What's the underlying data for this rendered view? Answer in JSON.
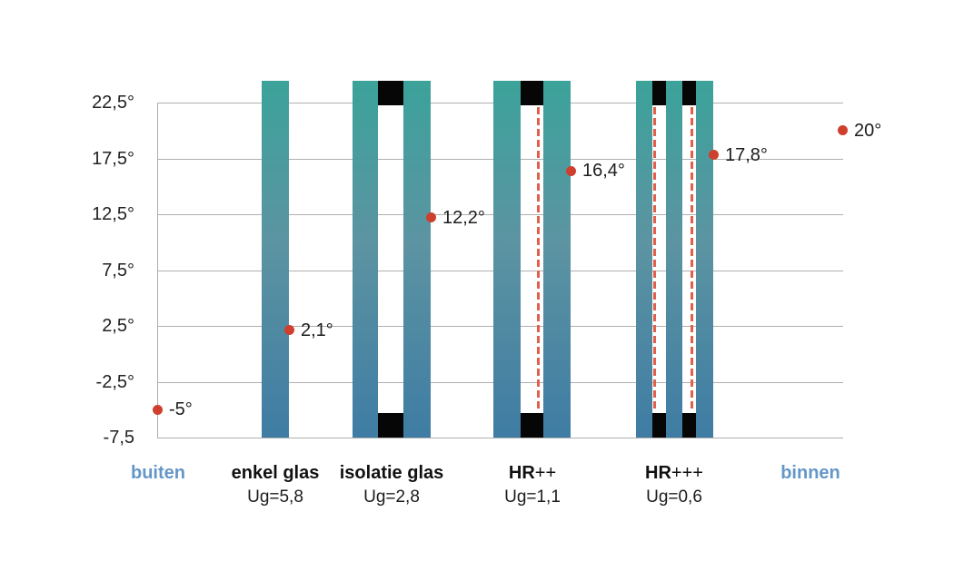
{
  "chart_data": {
    "type": "scatter",
    "title": "",
    "description": "Inner-surface glass temperature for different glazing types, outside -5° / inside 20°",
    "grid": true,
    "legend": false,
    "y_axis": {
      "min": -7.5,
      "max": 22.5,
      "step": 5,
      "tick_values": [
        22.5,
        17.5,
        12.5,
        7.5,
        2.5,
        -2.5,
        -7.5
      ],
      "tick_labels": [
        "22,5°",
        "17,5°",
        "12,5°",
        "7,5°",
        "2,5°",
        "-2,5°",
        "-7,5"
      ]
    },
    "categories": [
      {
        "id": "buiten",
        "label": "buiten",
        "label_suffix": "",
        "ug": "",
        "side_label": true,
        "panes": 0,
        "coatings": 0,
        "value": -5,
        "value_label": "-5°"
      },
      {
        "id": "enkel-glas",
        "label": "enkel glas",
        "label_suffix": "",
        "ug": "Ug=5,8",
        "side_label": false,
        "panes": 1,
        "coatings": 0,
        "value": 2.1,
        "value_label": "2,1°"
      },
      {
        "id": "isolatie-glas",
        "label": "isolatie glas",
        "label_suffix": "",
        "ug": "Ug=2,8",
        "side_label": false,
        "panes": 2,
        "coatings": 0,
        "value": 12.2,
        "value_label": "12,2°"
      },
      {
        "id": "hr-plus-plus",
        "label": "HR",
        "label_suffix": "++",
        "ug": "Ug=1,1",
        "side_label": false,
        "panes": 2,
        "coatings": 1,
        "value": 16.4,
        "value_label": "16,4°"
      },
      {
        "id": "hr-plus-plus-plus",
        "label": "HR",
        "label_suffix": "+++",
        "ug": "Ug=0,6",
        "side_label": false,
        "panes": 3,
        "coatings": 2,
        "value": 17.8,
        "value_label": "17,8°"
      },
      {
        "id": "binnen",
        "label": "binnen",
        "label_suffix": "",
        "ug": "",
        "side_label": true,
        "panes": 0,
        "coatings": 0,
        "value": 20,
        "value_label": "20°"
      }
    ],
    "colors": {
      "side_label": "#6496c8",
      "dot": "#ce3f2d",
      "coating_dash": "#e0604c",
      "gridline": "#afafaf",
      "text": "#1c1c1c",
      "pane_gradient_top": "#3ba29a",
      "pane_gradient_mid": "#5c94a2",
      "pane_gradient_bottom": "#3f7ca3",
      "spacer": "#060606"
    }
  }
}
